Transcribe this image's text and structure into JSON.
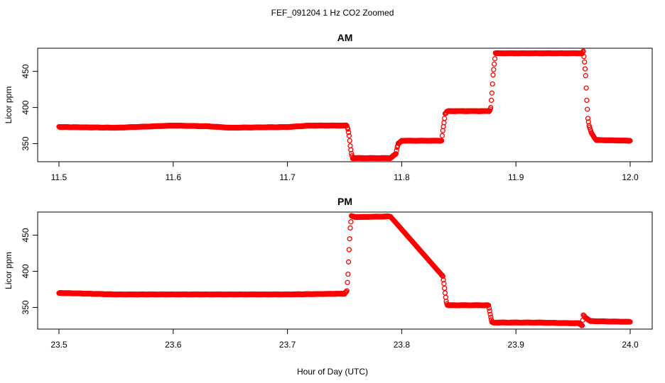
{
  "title": "FEF_091204  1 Hz CO2 Zoomed",
  "xlabel": "Hour of Day (UTC)",
  "colors": {
    "points": "#ff0000",
    "axes": "#000000"
  },
  "chart_data": [
    {
      "type": "scatter",
      "title": "AM",
      "ylabel": "Licor ppm",
      "xlim": [
        11.5,
        12.0
      ],
      "ylim": [
        325,
        482
      ],
      "xticks": [
        "11.5",
        "11.6",
        "11.7",
        "11.8",
        "11.9",
        "12.0"
      ],
      "yticks": [
        "350",
        "400",
        "450"
      ],
      "marker": "open-circle",
      "series": [
        {
          "x": [
            11.5,
            11.55,
            11.6,
            11.63,
            11.65,
            11.7,
            11.72,
            11.752,
            11.753,
            11.754,
            11.755,
            11.756,
            11.757,
            11.76,
            11.79,
            11.795,
            11.796,
            11.797,
            11.8,
            11.835,
            11.836,
            11.837,
            11.838,
            11.84,
            11.877,
            11.878,
            11.879,
            11.88,
            11.882,
            11.92,
            11.958,
            11.959,
            11.96,
            11.961,
            11.962,
            11.963,
            11.964,
            11.966,
            11.97,
            12.0
          ],
          "y": [
            373,
            372,
            375,
            374,
            372,
            373,
            375,
            375,
            370,
            361,
            347,
            336,
            330,
            330,
            330,
            336,
            345,
            350,
            354,
            354,
            368,
            379,
            391,
            395,
            395,
            400,
            420,
            445,
            475,
            475,
            475,
            478,
            463,
            444,
            410,
            385,
            375,
            365,
            355,
            354
          ]
        }
      ]
    },
    {
      "type": "scatter",
      "title": "PM",
      "ylabel": "Licor ppm",
      "xlim": [
        23.5,
        24.0
      ],
      "ylim": [
        320,
        482
      ],
      "xticks": [
        "23.5",
        "23.6",
        "23.7",
        "23.8",
        "23.9",
        "24.0"
      ],
      "yticks": [
        "350",
        "400",
        "450"
      ],
      "marker": "open-circle",
      "series": [
        {
          "x": [
            23.5,
            23.55,
            23.6,
            23.7,
            23.75,
            23.752,
            23.753,
            23.754,
            23.755,
            23.756,
            23.757,
            23.76,
            23.79,
            23.835,
            23.836,
            23.837,
            23.838,
            23.839,
            23.84,
            23.86,
            23.876,
            23.877,
            23.878,
            23.879,
            23.88,
            23.92,
            23.955,
            23.958,
            23.959,
            23.96,
            23.965,
            24.0
          ],
          "y": [
            370,
            368,
            368,
            368,
            369,
            373,
            396,
            430,
            460,
            477,
            476,
            475,
            476,
            395,
            393,
            383,
            370,
            358,
            353,
            353,
            353,
            345,
            336,
            330,
            329,
            329,
            328,
            325,
            340,
            337,
            331,
            330
          ]
        }
      ]
    }
  ]
}
